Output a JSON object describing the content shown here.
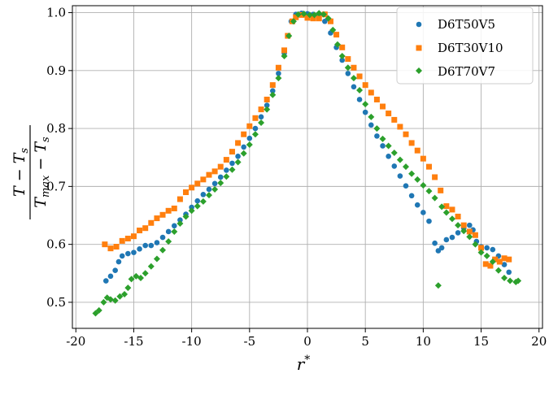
{
  "chart_data": {
    "type": "scatter",
    "title": "",
    "xlabel": "r*",
    "ylabel": "(T − T_s) / (T_max − T_s)",
    "xlim": [
      -20.3,
      20.3
    ],
    "ylim": [
      0.455,
      1.012
    ],
    "xticks": [
      -20,
      -15,
      -10,
      -5,
      0,
      5,
      10,
      15,
      20
    ],
    "xtick_labels": [
      "-20",
      "-15",
      "-10",
      "-5",
      "0",
      "5",
      "10",
      "15",
      "20"
    ],
    "yticks": [
      0.5,
      0.6,
      0.7,
      0.8,
      0.9,
      1.0
    ],
    "ytick_labels": [
      "0.5",
      "0.6",
      "0.7",
      "0.8",
      "0.9",
      "1.0"
    ],
    "grid": true,
    "legend_position": "top-right",
    "series": [
      {
        "name": "D6T50V5",
        "color": "#1f77b4",
        "marker": "circle",
        "points": [
          [
            -17.4,
            0.537
          ],
          [
            -17.0,
            0.545
          ],
          [
            -16.6,
            0.555
          ],
          [
            -16.3,
            0.57
          ],
          [
            -16.0,
            0.58
          ],
          [
            -15.5,
            0.584
          ],
          [
            -15.0,
            0.586
          ],
          [
            -14.5,
            0.592
          ],
          [
            -14.0,
            0.598
          ],
          [
            -13.5,
            0.598
          ],
          [
            -13.0,
            0.603
          ],
          [
            -12.5,
            0.612
          ],
          [
            -12.0,
            0.622
          ],
          [
            -11.5,
            0.632
          ],
          [
            -11.0,
            0.642
          ],
          [
            -10.5,
            0.652
          ],
          [
            -10.0,
            0.664
          ],
          [
            -9.5,
            0.675
          ],
          [
            -9.0,
            0.686
          ],
          [
            -8.5,
            0.695
          ],
          [
            -8.0,
            0.705
          ],
          [
            -7.5,
            0.716
          ],
          [
            -7.0,
            0.728
          ],
          [
            -6.5,
            0.74
          ],
          [
            -6.0,
            0.752
          ],
          [
            -5.5,
            0.768
          ],
          [
            -5.0,
            0.783
          ],
          [
            -4.5,
            0.8
          ],
          [
            -4.0,
            0.82
          ],
          [
            -3.5,
            0.84
          ],
          [
            -3.0,
            0.865
          ],
          [
            -2.5,
            0.895
          ],
          [
            -2.0,
            0.93
          ],
          [
            -1.7,
            0.96
          ],
          [
            -1.4,
            0.985
          ],
          [
            -1.0,
            0.997
          ],
          [
            -0.5,
            0.999
          ],
          [
            0.0,
            0.998
          ],
          [
            0.5,
            0.997
          ],
          [
            1.0,
            0.994
          ],
          [
            1.5,
            0.985
          ],
          [
            2.0,
            0.965
          ],
          [
            2.5,
            0.94
          ],
          [
            3.0,
            0.918
          ],
          [
            3.5,
            0.895
          ],
          [
            4.0,
            0.872
          ],
          [
            4.5,
            0.85
          ],
          [
            5.0,
            0.828
          ],
          [
            5.5,
            0.806
          ],
          [
            6.0,
            0.787
          ],
          [
            6.5,
            0.77
          ],
          [
            7.0,
            0.752
          ],
          [
            7.5,
            0.735
          ],
          [
            8.0,
            0.718
          ],
          [
            8.5,
            0.701
          ],
          [
            9.0,
            0.684
          ],
          [
            9.5,
            0.668
          ],
          [
            10.0,
            0.655
          ],
          [
            10.5,
            0.64
          ],
          [
            11.0,
            0.602
          ],
          [
            11.3,
            0.589
          ],
          [
            11.6,
            0.594
          ],
          [
            12.0,
            0.608
          ],
          [
            12.5,
            0.612
          ],
          [
            13.0,
            0.62
          ],
          [
            13.5,
            0.628
          ],
          [
            14.0,
            0.633
          ],
          [
            14.3,
            0.625
          ],
          [
            14.6,
            0.605
          ],
          [
            15.0,
            0.596
          ],
          [
            15.5,
            0.594
          ],
          [
            16.0,
            0.591
          ],
          [
            16.5,
            0.58
          ],
          [
            17.0,
            0.565
          ],
          [
            17.4,
            0.552
          ]
        ]
      },
      {
        "name": "D6T30V10",
        "color": "#ff7f0e",
        "marker": "square",
        "points": [
          [
            -17.5,
            0.6
          ],
          [
            -17.0,
            0.593
          ],
          [
            -16.5,
            0.596
          ],
          [
            -16.0,
            0.606
          ],
          [
            -15.5,
            0.61
          ],
          [
            -15.0,
            0.614
          ],
          [
            -14.5,
            0.624
          ],
          [
            -14.0,
            0.628
          ],
          [
            -13.5,
            0.637
          ],
          [
            -13.0,
            0.645
          ],
          [
            -12.5,
            0.651
          ],
          [
            -12.0,
            0.658
          ],
          [
            -11.5,
            0.662
          ],
          [
            -11.0,
            0.678
          ],
          [
            -10.5,
            0.69
          ],
          [
            -10.0,
            0.698
          ],
          [
            -9.5,
            0.705
          ],
          [
            -9.0,
            0.712
          ],
          [
            -8.5,
            0.72
          ],
          [
            -8.0,
            0.726
          ],
          [
            -7.5,
            0.734
          ],
          [
            -7.0,
            0.746
          ],
          [
            -6.5,
            0.76
          ],
          [
            -6.0,
            0.775
          ],
          [
            -5.5,
            0.79
          ],
          [
            -5.0,
            0.804
          ],
          [
            -4.5,
            0.818
          ],
          [
            -4.0,
            0.833
          ],
          [
            -3.5,
            0.85
          ],
          [
            -3.0,
            0.875
          ],
          [
            -2.5,
            0.905
          ],
          [
            -2.0,
            0.935
          ],
          [
            -1.7,
            0.96
          ],
          [
            -1.3,
            0.985
          ],
          [
            -1.0,
            0.992
          ],
          [
            -0.5,
            0.996
          ],
          [
            0.0,
            0.991
          ],
          [
            0.5,
            0.99
          ],
          [
            1.0,
            0.99
          ],
          [
            1.5,
            0.997
          ],
          [
            2.0,
            0.985
          ],
          [
            2.5,
            0.962
          ],
          [
            3.0,
            0.94
          ],
          [
            3.5,
            0.92
          ],
          [
            4.0,
            0.905
          ],
          [
            4.5,
            0.89
          ],
          [
            5.0,
            0.875
          ],
          [
            5.5,
            0.862
          ],
          [
            6.0,
            0.85
          ],
          [
            6.5,
            0.838
          ],
          [
            7.0,
            0.826
          ],
          [
            7.5,
            0.815
          ],
          [
            8.0,
            0.803
          ],
          [
            8.5,
            0.79
          ],
          [
            9.0,
            0.775
          ],
          [
            9.5,
            0.762
          ],
          [
            10.0,
            0.748
          ],
          [
            10.5,
            0.734
          ],
          [
            11.0,
            0.716
          ],
          [
            11.5,
            0.693
          ],
          [
            12.0,
            0.666
          ],
          [
            12.5,
            0.66
          ],
          [
            13.0,
            0.648
          ],
          [
            13.5,
            0.633
          ],
          [
            14.0,
            0.622
          ],
          [
            14.5,
            0.616
          ],
          [
            15.0,
            0.594
          ],
          [
            15.4,
            0.566
          ],
          [
            15.8,
            0.563
          ],
          [
            16.2,
            0.574
          ],
          [
            16.6,
            0.57
          ],
          [
            17.0,
            0.576
          ],
          [
            17.4,
            0.574
          ]
        ]
      },
      {
        "name": "D6T70V7",
        "color": "#2ca02c",
        "marker": "diamond",
        "points": [
          [
            -18.3,
            0.481
          ],
          [
            -18.0,
            0.486
          ],
          [
            -17.6,
            0.5
          ],
          [
            -17.3,
            0.508
          ],
          [
            -17.0,
            0.505
          ],
          [
            -16.6,
            0.503
          ],
          [
            -16.2,
            0.51
          ],
          [
            -15.8,
            0.514
          ],
          [
            -15.5,
            0.525
          ],
          [
            -15.2,
            0.54
          ],
          [
            -14.8,
            0.545
          ],
          [
            -14.4,
            0.542
          ],
          [
            -14.0,
            0.55
          ],
          [
            -13.5,
            0.562
          ],
          [
            -13.0,
            0.575
          ],
          [
            -12.5,
            0.59
          ],
          [
            -12.0,
            0.605
          ],
          [
            -11.5,
            0.622
          ],
          [
            -11.0,
            0.636
          ],
          [
            -10.5,
            0.648
          ],
          [
            -10.0,
            0.658
          ],
          [
            -9.5,
            0.666
          ],
          [
            -9.0,
            0.674
          ],
          [
            -8.5,
            0.685
          ],
          [
            -8.0,
            0.695
          ],
          [
            -7.5,
            0.706
          ],
          [
            -7.0,
            0.717
          ],
          [
            -6.5,
            0.729
          ],
          [
            -6.0,
            0.742
          ],
          [
            -5.5,
            0.757
          ],
          [
            -5.0,
            0.772
          ],
          [
            -4.5,
            0.79
          ],
          [
            -4.0,
            0.81
          ],
          [
            -3.5,
            0.833
          ],
          [
            -3.0,
            0.858
          ],
          [
            -2.5,
            0.887
          ],
          [
            -2.0,
            0.925
          ],
          [
            -1.6,
            0.96
          ],
          [
            -1.2,
            0.985
          ],
          [
            -0.8,
            0.997
          ],
          [
            -0.3,
            0.998
          ],
          [
            0.2,
            0.996
          ],
          [
            0.6,
            0.996
          ],
          [
            1.0,
            0.999
          ],
          [
            1.4,
            0.997
          ],
          [
            1.8,
            0.99
          ],
          [
            2.2,
            0.97
          ],
          [
            2.6,
            0.945
          ],
          [
            3.0,
            0.925
          ],
          [
            3.5,
            0.905
          ],
          [
            4.0,
            0.887
          ],
          [
            4.5,
            0.866
          ],
          [
            5.0,
            0.842
          ],
          [
            5.5,
            0.82
          ],
          [
            6.0,
            0.8
          ],
          [
            6.5,
            0.782
          ],
          [
            7.0,
            0.77
          ],
          [
            7.5,
            0.758
          ],
          [
            8.0,
            0.746
          ],
          [
            8.5,
            0.734
          ],
          [
            9.0,
            0.722
          ],
          [
            9.5,
            0.712
          ],
          [
            10.0,
            0.702
          ],
          [
            10.5,
            0.692
          ],
          [
            11.0,
            0.68
          ],
          [
            11.3,
            0.529
          ],
          [
            11.6,
            0.665
          ],
          [
            12.0,
            0.655
          ],
          [
            12.5,
            0.644
          ],
          [
            13.0,
            0.633
          ],
          [
            13.5,
            0.623
          ],
          [
            14.0,
            0.613
          ],
          [
            14.5,
            0.6
          ],
          [
            15.0,
            0.586
          ],
          [
            15.5,
            0.58
          ],
          [
            16.0,
            0.57
          ],
          [
            16.5,
            0.555
          ],
          [
            17.0,
            0.542
          ],
          [
            17.5,
            0.537
          ],
          [
            18.0,
            0.535
          ],
          [
            18.2,
            0.537
          ]
        ]
      }
    ]
  }
}
